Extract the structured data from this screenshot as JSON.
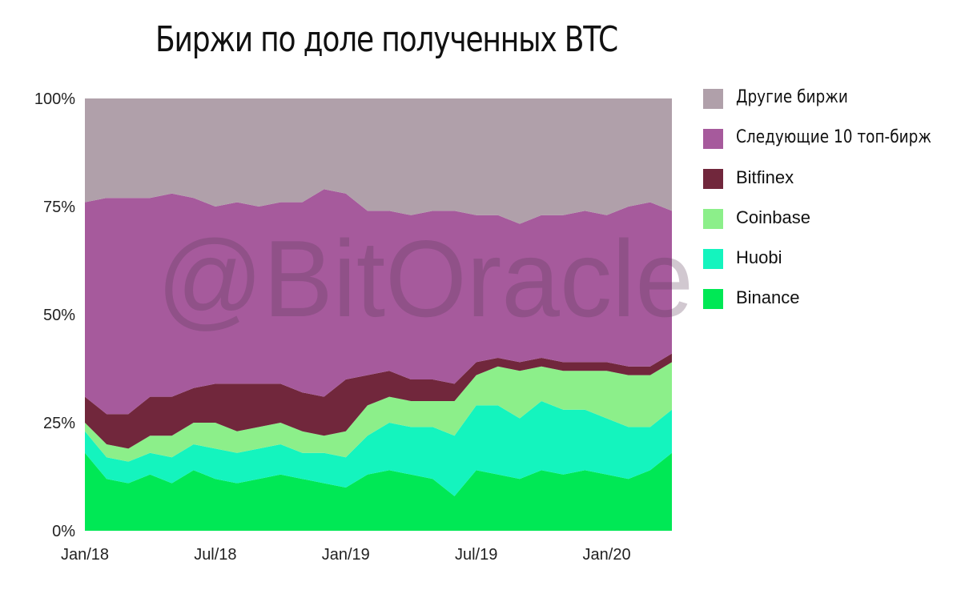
{
  "title": "Биржи по доле полученных BTC",
  "watermark": "@BitOracle",
  "chart_data": {
    "type": "area",
    "stacked": true,
    "title": "Биржи по доле полученных BTC",
    "xlabel": "",
    "ylabel": "",
    "ylim": [
      0,
      100
    ],
    "y_ticks": [
      "0%",
      "25%",
      "50%",
      "75%",
      "100%"
    ],
    "x_ticks": [
      "Jan/18",
      "Jul/18",
      "Jan/19",
      "Jul/19",
      "Jan/20"
    ],
    "grid": false,
    "legend_position": "right",
    "x": [
      "2018-01",
      "2018-02",
      "2018-03",
      "2018-04",
      "2018-05",
      "2018-06",
      "2018-07",
      "2018-08",
      "2018-09",
      "2018-10",
      "2018-11",
      "2018-12",
      "2019-01",
      "2019-02",
      "2019-03",
      "2019-04",
      "2019-05",
      "2019-06",
      "2019-07",
      "2019-08",
      "2019-09",
      "2019-10",
      "2019-11",
      "2019-12",
      "2020-01",
      "2020-02",
      "2020-03",
      "2020-04"
    ],
    "series": [
      {
        "name": "Binance",
        "color": "#00e855",
        "values": [
          18,
          12,
          11,
          13,
          11,
          14,
          12,
          11,
          12,
          13,
          12,
          11,
          10,
          13,
          14,
          13,
          12,
          8,
          14,
          13,
          12,
          14,
          13,
          14,
          13,
          12,
          14,
          18
        ]
      },
      {
        "name": "Huobi",
        "color": "#14f4be",
        "values": [
          5,
          5,
          5,
          5,
          6,
          6,
          7,
          7,
          7,
          7,
          6,
          7,
          7,
          9,
          11,
          11,
          12,
          14,
          15,
          16,
          14,
          16,
          15,
          14,
          13,
          12,
          10,
          10
        ]
      },
      {
        "name": "Coinbase",
        "color": "#8cef8a",
        "values": [
          2,
          3,
          3,
          4,
          5,
          5,
          6,
          5,
          5,
          5,
          5,
          4,
          6,
          7,
          6,
          6,
          6,
          8,
          7,
          9,
          11,
          8,
          9,
          9,
          11,
          12,
          12,
          11
        ]
      },
      {
        "name": "Bitfinex",
        "color": "#71273c",
        "values": [
          6,
          7,
          8,
          9,
          9,
          8,
          9,
          11,
          10,
          9,
          9,
          9,
          12,
          7,
          6,
          5,
          5,
          4,
          3,
          2,
          2,
          2,
          2,
          2,
          2,
          2,
          2,
          2
        ]
      },
      {
        "name": "Следующие 10 топ-бирж",
        "color": "#a65a9c",
        "values": [
          45,
          50,
          50,
          46,
          47,
          44,
          41,
          42,
          41,
          42,
          44,
          48,
          43,
          38,
          37,
          38,
          39,
          40,
          34,
          33,
          32,
          33,
          34,
          35,
          34,
          37,
          38,
          33
        ]
      },
      {
        "name": "Другие биржи",
        "color": "#b0a0aa",
        "values": [
          24,
          23,
          23,
          23,
          22,
          23,
          25,
          24,
          25,
          24,
          24,
          21,
          22,
          26,
          26,
          27,
          26,
          26,
          27,
          27,
          29,
          27,
          27,
          26,
          27,
          25,
          24,
          26
        ]
      }
    ]
  },
  "legend": [
    {
      "label": "Другие биржи",
      "color": "#b0a0aa"
    },
    {
      "label": "Следующие 10 топ-бирж",
      "color": "#a65a9c"
    },
    {
      "label": "Bitfinex",
      "color": "#71273c"
    },
    {
      "label": "Coinbase",
      "color": "#8cef8a"
    },
    {
      "label": "Huobi",
      "color": "#14f4be"
    },
    {
      "label": "Binance",
      "color": "#00e855"
    }
  ]
}
